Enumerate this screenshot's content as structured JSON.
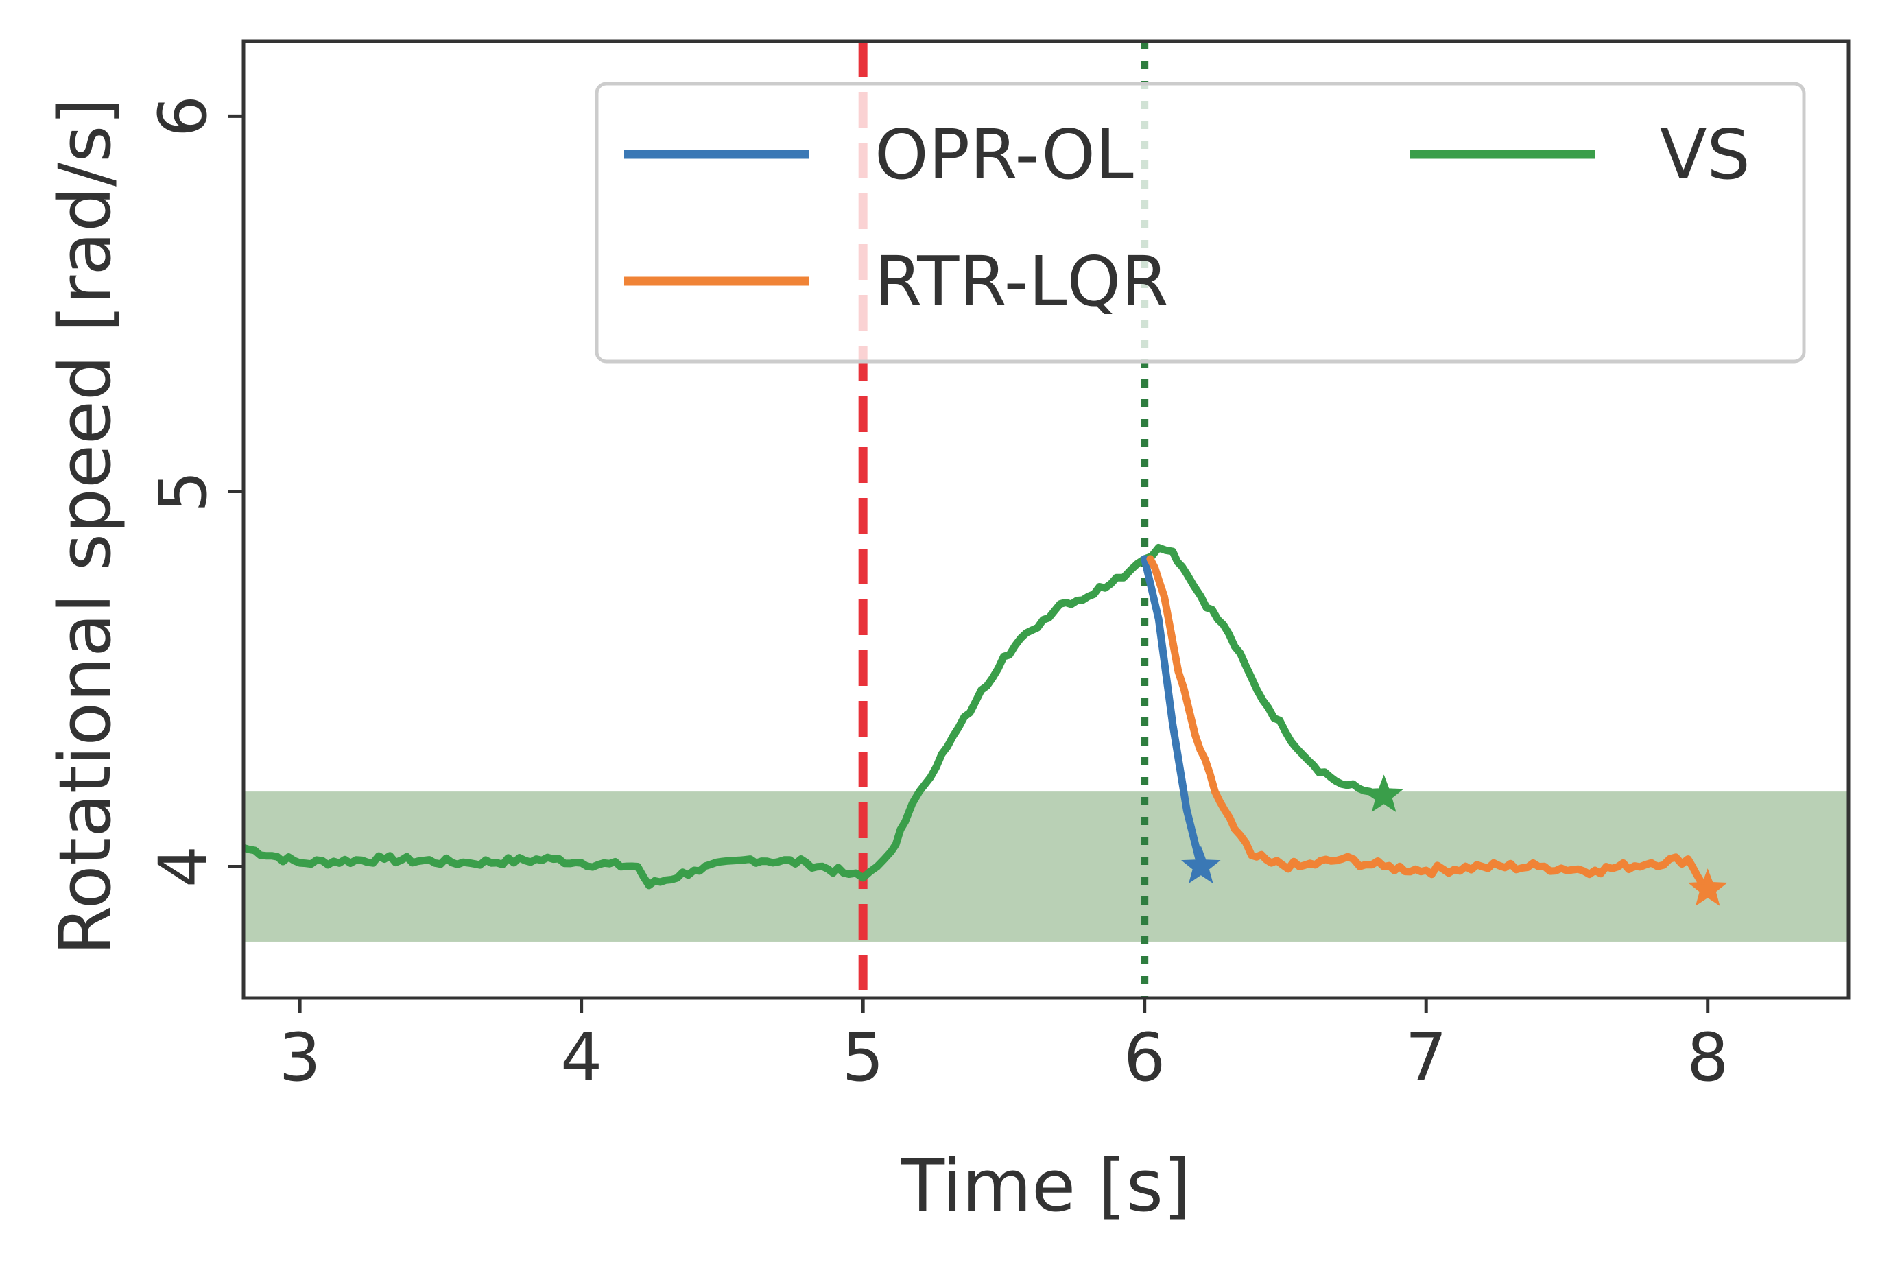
{
  "chart_data": {
    "type": "line",
    "title": "",
    "xlabel": "Time [s]",
    "ylabel": "Rotational speed [rad/s]",
    "xlim": [
      2.8,
      8.5
    ],
    "ylim": [
      3.65,
      6.2
    ],
    "xticks": [
      3,
      4,
      5,
      6,
      7,
      8
    ],
    "yticks": [
      4,
      5,
      6
    ],
    "grid": false,
    "legend_position": "top-right",
    "band": {
      "y_min": 3.8,
      "y_max": 4.2,
      "color": "#b9d0b5"
    },
    "vlines": [
      {
        "x": 5.0,
        "style": "dashed",
        "color": "#e8323a"
      },
      {
        "x": 6.0,
        "style": "dotted",
        "color": "#2e7d3f"
      }
    ],
    "series": [
      {
        "name": "OPR-OL",
        "color": "#3a78b5",
        "end_marker": "star",
        "x": [
          6.0,
          6.05,
          6.1,
          6.15,
          6.2
        ],
        "y": [
          4.82,
          4.66,
          4.38,
          4.15,
          4.0
        ]
      },
      {
        "name": "RTR-LQR",
        "color": "#f08336",
        "end_marker": "star",
        "x": [
          6.02,
          6.07,
          6.12,
          6.18,
          6.25,
          6.32,
          6.38,
          6.45,
          6.55,
          6.7,
          6.85,
          7.0,
          7.2,
          7.4,
          7.6,
          7.8,
          7.93,
          7.96,
          8.0
        ],
        "y": [
          4.82,
          4.72,
          4.52,
          4.35,
          4.2,
          4.1,
          4.03,
          4.01,
          4.0,
          4.02,
          4.0,
          3.99,
          4.0,
          4.0,
          3.99,
          4.01,
          4.02,
          3.98,
          3.94
        ],
        "jitter": 0.012
      },
      {
        "name": "VS",
        "color": "#3a9e4a",
        "end_marker": "star",
        "x": [
          2.8,
          3.0,
          3.3,
          3.6,
          3.9,
          4.0,
          4.2,
          4.24,
          4.4,
          4.6,
          4.8,
          4.95,
          5.0,
          5.05,
          5.1,
          5.15,
          5.2,
          5.3,
          5.4,
          5.5,
          5.6,
          5.7,
          5.8,
          5.9,
          5.95,
          6.0,
          6.05,
          6.1,
          6.15,
          6.2,
          6.3,
          6.4,
          6.5,
          6.6,
          6.7,
          6.8,
          6.85
        ],
        "y": [
          4.05,
          4.01,
          4.02,
          4.01,
          4.02,
          4.01,
          4.0,
          3.95,
          3.99,
          4.02,
          4.01,
          3.98,
          3.97,
          4.0,
          4.04,
          4.12,
          4.2,
          4.32,
          4.44,
          4.56,
          4.63,
          4.7,
          4.72,
          4.77,
          4.79,
          4.82,
          4.85,
          4.84,
          4.78,
          4.72,
          4.62,
          4.47,
          4.36,
          4.27,
          4.22,
          4.2,
          4.19
        ],
        "jitter": 0.01
      }
    ]
  }
}
